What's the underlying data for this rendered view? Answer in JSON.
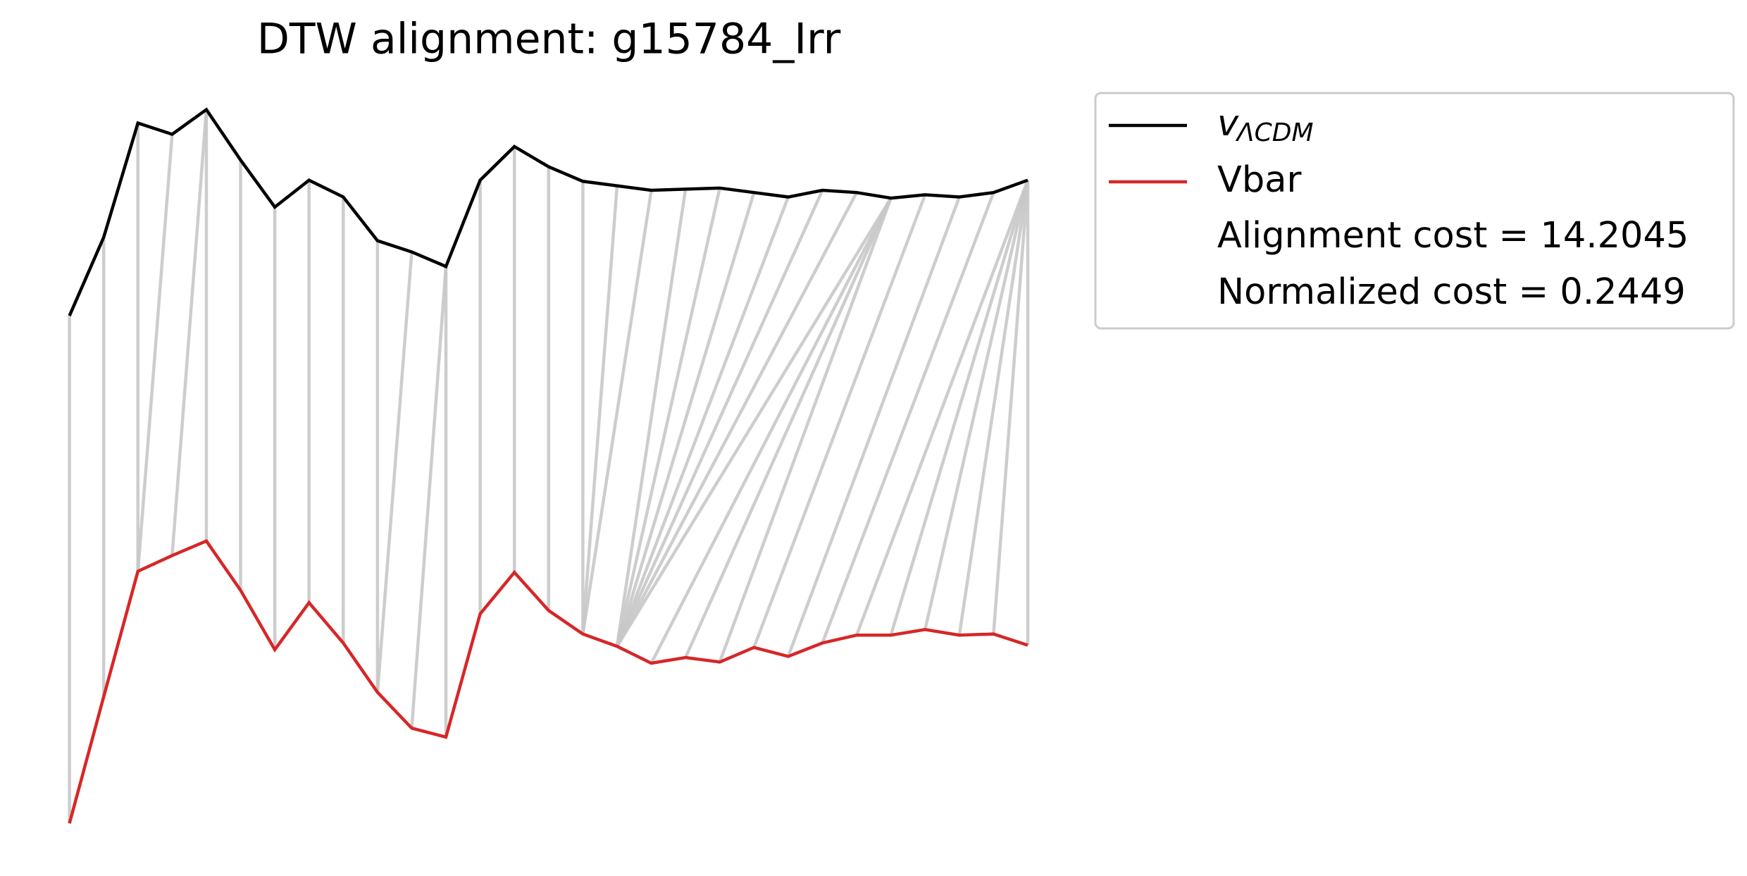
{
  "chart_data": {
    "type": "dtw_alignment",
    "title": "DTW alignment: g15784_Irr",
    "series": [
      {
        "name": "v",
        "name_subscript": "ΛCDM",
        "color": "#000000",
        "values": [
          508,
          578,
          680,
          670,
          692,
          647,
          605,
          629,
          614,
          575,
          565,
          552,
          629,
          659,
          641,
          628,
          624,
          620,
          621,
          622,
          618,
          614,
          620,
          618,
          613,
          616,
          614,
          618,
          629
        ]
      },
      {
        "name": "Vbar",
        "color": "#d62728",
        "values": [
          55,
          168,
          280,
          294,
          307,
          263,
          210,
          252,
          216,
          172,
          140,
          132,
          242,
          279,
          245,
          224,
          213,
          198,
          203,
          199,
          212,
          204,
          216,
          223,
          223,
          228,
          223,
          224,
          214
        ]
      }
    ],
    "alignment": [
      [
        0,
        0
      ],
      [
        1,
        1
      ],
      [
        2,
        2
      ],
      [
        3,
        2
      ],
      [
        4,
        3
      ],
      [
        4,
        4
      ],
      [
        5,
        5
      ],
      [
        6,
        6
      ],
      [
        7,
        7
      ],
      [
        8,
        8
      ],
      [
        9,
        9
      ],
      [
        10,
        9
      ],
      [
        11,
        10
      ],
      [
        11,
        11
      ],
      [
        12,
        12
      ],
      [
        13,
        13
      ],
      [
        14,
        14
      ],
      [
        15,
        15
      ],
      [
        16,
        15
      ],
      [
        17,
        15
      ],
      [
        18,
        16
      ],
      [
        19,
        16
      ],
      [
        20,
        16
      ],
      [
        21,
        16
      ],
      [
        22,
        16
      ],
      [
        23,
        16
      ],
      [
        24,
        16
      ],
      [
        24,
        17
      ],
      [
        24,
        18
      ],
      [
        24,
        19
      ],
      [
        25,
        20
      ],
      [
        26,
        21
      ],
      [
        27,
        22
      ],
      [
        28,
        23
      ],
      [
        28,
        24
      ],
      [
        28,
        25
      ],
      [
        28,
        26
      ],
      [
        28,
        27
      ],
      [
        28,
        28
      ]
    ],
    "alignment_color": "#c8c8c8",
    "annotations": [
      "Alignment cost = 14.2045",
      "Normalized cost = 0.2449"
    ],
    "ylim": [
      20,
      720
    ]
  }
}
